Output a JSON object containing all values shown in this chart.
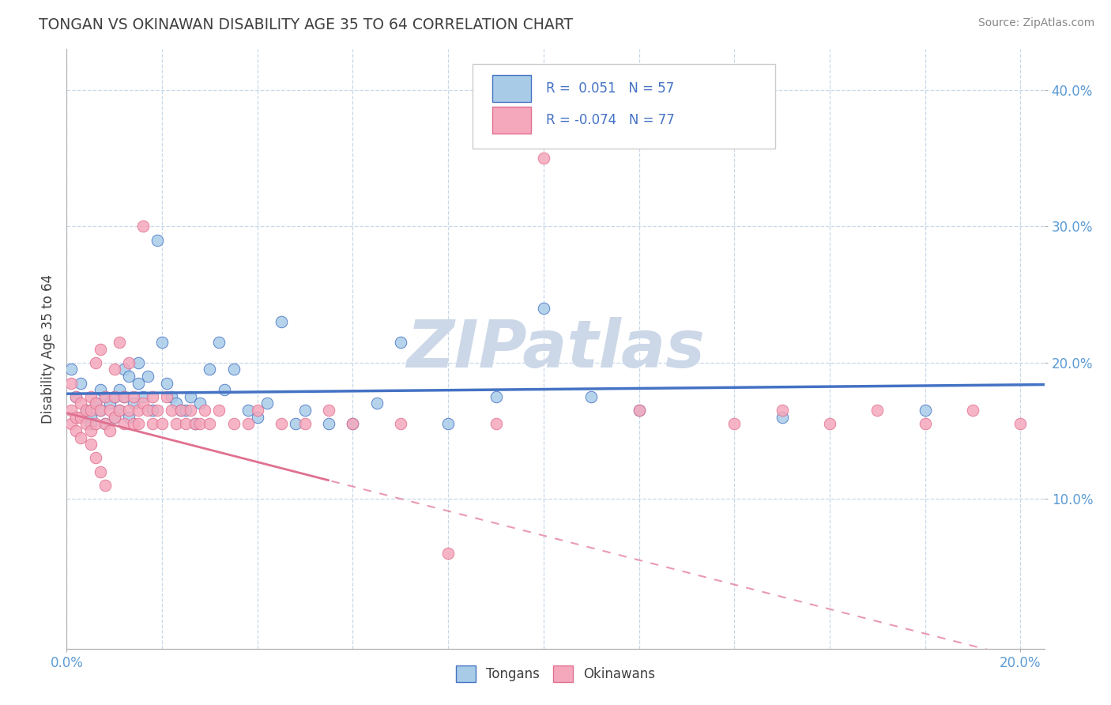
{
  "title": "TONGAN VS OKINAWAN DISABILITY AGE 35 TO 64 CORRELATION CHART",
  "source_text": "Source: ZipAtlas.com",
  "ylabel": "Disability Age 35 to 64",
  "xlim": [
    0.0,
    0.205
  ],
  "ylim": [
    -0.01,
    0.43
  ],
  "ytick_positions": [
    0.1,
    0.2,
    0.3,
    0.4
  ],
  "ytick_labels": [
    "10.0%",
    "20.0%",
    "30.0%",
    "40.0%"
  ],
  "tongans_R": 0.051,
  "tongans_N": 57,
  "okinawans_R": -0.074,
  "okinawans_N": 77,
  "color_tongan": "#a8cce8",
  "color_okinawan": "#f5a8bc",
  "color_tongan_line": "#4472c4",
  "color_okinawan_line": "#e07090",
  "background_color": "#ffffff",
  "grid_color": "#c8d8e8",
  "watermark_color": "#ccd8e8",
  "title_color": "#404040",
  "axis_label_color": "#5b9bd5",
  "legend_label_color": "#4472c4",
  "tongans_x": [
    0.001,
    0.002,
    0.003,
    0.004,
    0.005,
    0.005,
    0.006,
    0.007,
    0.007,
    0.008,
    0.008,
    0.009,
    0.01,
    0.01,
    0.011,
    0.011,
    0.012,
    0.012,
    0.013,
    0.013,
    0.014,
    0.015,
    0.015,
    0.016,
    0.017,
    0.018,
    0.019,
    0.02,
    0.021,
    0.022,
    0.023,
    0.024,
    0.025,
    0.026,
    0.027,
    0.028,
    0.03,
    0.032,
    0.033,
    0.035,
    0.038,
    0.04,
    0.042,
    0.045,
    0.048,
    0.05,
    0.055,
    0.06,
    0.065,
    0.07,
    0.08,
    0.09,
    0.1,
    0.11,
    0.12,
    0.15,
    0.18
  ],
  "tongans_y": [
    0.195,
    0.175,
    0.185,
    0.165,
    0.16,
    0.155,
    0.17,
    0.18,
    0.165,
    0.175,
    0.155,
    0.17,
    0.16,
    0.175,
    0.165,
    0.18,
    0.175,
    0.195,
    0.16,
    0.19,
    0.17,
    0.185,
    0.2,
    0.175,
    0.19,
    0.165,
    0.29,
    0.215,
    0.185,
    0.175,
    0.17,
    0.165,
    0.165,
    0.175,
    0.155,
    0.17,
    0.195,
    0.215,
    0.18,
    0.195,
    0.165,
    0.16,
    0.17,
    0.23,
    0.155,
    0.165,
    0.155,
    0.155,
    0.17,
    0.215,
    0.155,
    0.175,
    0.24,
    0.175,
    0.165,
    0.16,
    0.165
  ],
  "okinawans_x": [
    0.001,
    0.001,
    0.001,
    0.002,
    0.002,
    0.002,
    0.003,
    0.003,
    0.003,
    0.004,
    0.004,
    0.005,
    0.005,
    0.005,
    0.006,
    0.006,
    0.006,
    0.007,
    0.007,
    0.008,
    0.008,
    0.009,
    0.009,
    0.01,
    0.01,
    0.01,
    0.011,
    0.011,
    0.012,
    0.012,
    0.013,
    0.013,
    0.014,
    0.014,
    0.015,
    0.015,
    0.016,
    0.016,
    0.017,
    0.018,
    0.018,
    0.019,
    0.02,
    0.021,
    0.022,
    0.023,
    0.024,
    0.025,
    0.026,
    0.027,
    0.028,
    0.029,
    0.03,
    0.032,
    0.035,
    0.038,
    0.04,
    0.045,
    0.05,
    0.055,
    0.06,
    0.07,
    0.08,
    0.09,
    0.1,
    0.12,
    0.14,
    0.15,
    0.16,
    0.17,
    0.18,
    0.19,
    0.2,
    0.005,
    0.006,
    0.007,
    0.008
  ],
  "okinawans_y": [
    0.185,
    0.165,
    0.155,
    0.175,
    0.16,
    0.15,
    0.17,
    0.16,
    0.145,
    0.165,
    0.155,
    0.175,
    0.165,
    0.15,
    0.17,
    0.2,
    0.155,
    0.165,
    0.21,
    0.175,
    0.155,
    0.165,
    0.15,
    0.175,
    0.16,
    0.195,
    0.165,
    0.215,
    0.175,
    0.155,
    0.165,
    0.2,
    0.155,
    0.175,
    0.155,
    0.165,
    0.17,
    0.3,
    0.165,
    0.155,
    0.175,
    0.165,
    0.155,
    0.175,
    0.165,
    0.155,
    0.165,
    0.155,
    0.165,
    0.155,
    0.155,
    0.165,
    0.155,
    0.165,
    0.155,
    0.155,
    0.165,
    0.155,
    0.155,
    0.165,
    0.155,
    0.155,
    0.06,
    0.155,
    0.35,
    0.165,
    0.155,
    0.165,
    0.155,
    0.165,
    0.155,
    0.165,
    0.155,
    0.14,
    0.13,
    0.12,
    0.11
  ]
}
